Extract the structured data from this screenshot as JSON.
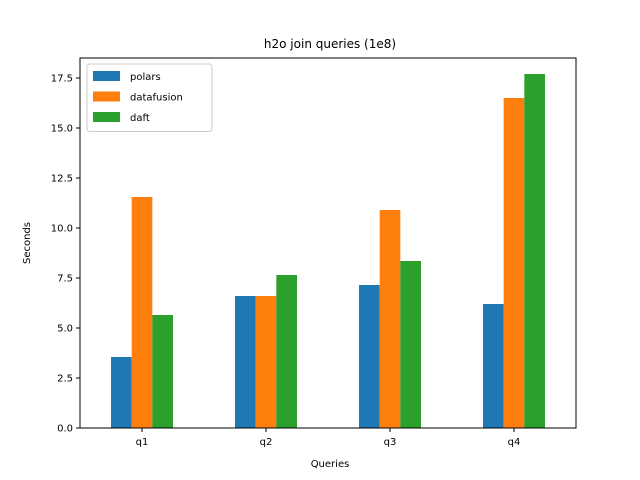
{
  "chart_data": {
    "type": "bar",
    "title": "h2o join queries (1e8)",
    "xlabel": "Queries",
    "ylabel": "Seconds",
    "categories": [
      "q1",
      "q2",
      "q3",
      "q4"
    ],
    "series": [
      {
        "name": "polars",
        "color": "#1f77b4",
        "values": [
          3.55,
          6.6,
          7.15,
          6.2
        ]
      },
      {
        "name": "datafusion",
        "color": "#ff7f0e",
        "values": [
          11.55,
          6.6,
          10.9,
          16.5
        ]
      },
      {
        "name": "daft",
        "color": "#2ca02c",
        "values": [
          5.65,
          7.65,
          8.35,
          17.7
        ]
      }
    ],
    "ylim": [
      0,
      18.5
    ],
    "yticks": [
      0.0,
      2.5,
      5.0,
      7.5,
      10.0,
      12.5,
      15.0,
      17.5
    ],
    "ytick_labels": [
      "0.0",
      "2.5",
      "5.0",
      "7.5",
      "10.0",
      "12.5",
      "15.0",
      "17.5"
    ],
    "legend": "top-left",
    "grid": false
  }
}
